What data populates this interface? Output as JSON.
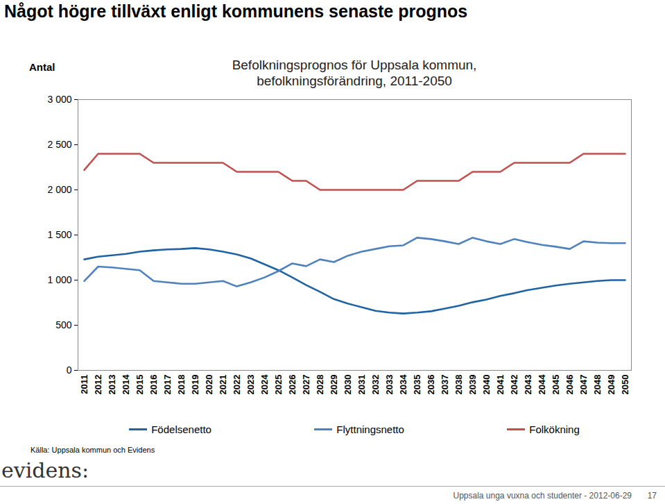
{
  "heading": "Något högre tillväxt enligt kommunens senaste prognos",
  "chart_data": {
    "type": "line",
    "title": "Befolkningsprognos för Uppsala kommun,",
    "subtitle": "befolkningsförändring, 2011-2050",
    "y_label": "Antal",
    "categories": [
      "2011",
      "2012",
      "2013",
      "2014",
      "2015",
      "2016",
      "2017",
      "2018",
      "2019",
      "2020",
      "2021",
      "2022",
      "2023",
      "2024",
      "2025",
      "2026",
      "2027",
      "2028",
      "2029",
      "2030",
      "2031",
      "2032",
      "2033",
      "2034",
      "2035",
      "2036",
      "2037",
      "2038",
      "2039",
      "2040",
      "2041",
      "2042",
      "2043",
      "2044",
      "2045",
      "2046",
      "2047",
      "2048",
      "2049",
      "2050"
    ],
    "series": [
      {
        "name": "Födelsenetto",
        "color": "#1f63a3",
        "values": [
          1230,
          1260,
          1275,
          1290,
          1315,
          1330,
          1340,
          1345,
          1355,
          1340,
          1315,
          1285,
          1240,
          1175,
          1110,
          1030,
          945,
          870,
          790,
          740,
          700,
          660,
          640,
          630,
          640,
          655,
          685,
          715,
          755,
          785,
          825,
          855,
          890,
          915,
          940,
          960,
          975,
          990,
          1000,
          1000
        ]
      },
      {
        "name": "Flyttningsnetto",
        "color": "#4f81bd",
        "values": [
          990,
          1150,
          1140,
          1125,
          1110,
          990,
          975,
          960,
          960,
          975,
          990,
          930,
          975,
          1030,
          1100,
          1185,
          1155,
          1230,
          1200,
          1270,
          1315,
          1345,
          1375,
          1385,
          1470,
          1455,
          1430,
          1400,
          1470,
          1430,
          1400,
          1455,
          1420,
          1390,
          1370,
          1345,
          1430,
          1415,
          1410,
          1410
        ]
      },
      {
        "name": "Folkökning",
        "color": "#c0504d",
        "values": [
          2220,
          2400,
          2400,
          2400,
          2400,
          2300,
          2300,
          2300,
          2300,
          2300,
          2300,
          2200,
          2200,
          2200,
          2200,
          2100,
          2100,
          2000,
          2000,
          2000,
          2000,
          2000,
          2000,
          2000,
          2100,
          2100,
          2100,
          2100,
          2200,
          2200,
          2200,
          2300,
          2300,
          2300,
          2300,
          2300,
          2400,
          2400,
          2400,
          2400
        ]
      }
    ],
    "ylim": [
      0,
      3000
    ],
    "yticks": [
      0,
      500,
      {
        "value": 1000,
        "label": "1 000"
      },
      {
        "value": 1500,
        "label": "1 500"
      },
      {
        "value": 2000,
        "label": "2 000"
      },
      {
        "value": 2500,
        "label": "2 500"
      },
      {
        "value": 3000,
        "label": "3 000"
      }
    ],
    "grid": false,
    "legend": "bottom"
  },
  "source": "Källa: Uppsala kommun och Evidens",
  "logo": "evidens:",
  "footer": "Uppsala unga vuxna och studenter - 2012-06-29",
  "page_number": 17
}
